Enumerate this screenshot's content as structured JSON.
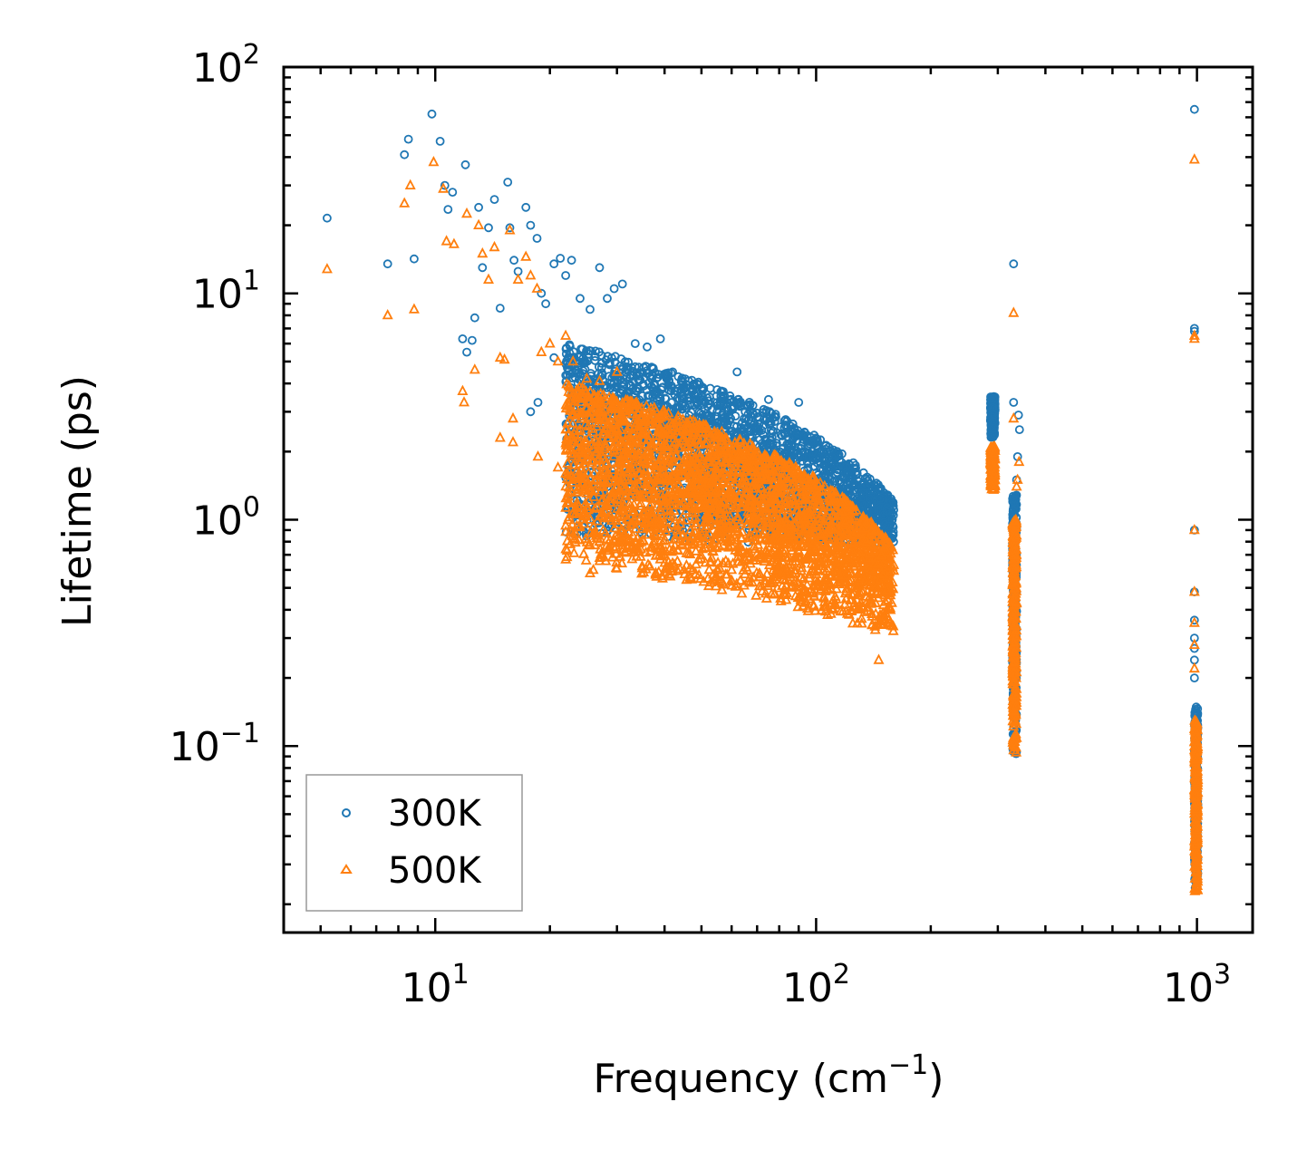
{
  "chart_data": {
    "type": "scatter",
    "xscale": "log",
    "yscale": "log",
    "xlim": [
      4,
      1400
    ],
    "ylim": [
      0.015,
      100
    ],
    "xlabel": "Frequency (cm",
    "xlabel_exp": "−1",
    "xlabel_close": ")",
    "ylabel": "Lifetime (ps)",
    "x_ticks": [
      {
        "value": 10,
        "base": "10",
        "exp": "1"
      },
      {
        "value": 100,
        "base": "10",
        "exp": "2"
      },
      {
        "value": 1000,
        "base": "10",
        "exp": "3"
      }
    ],
    "y_ticks": [
      {
        "value": 0.1,
        "base": "10",
        "exp": "−1"
      },
      {
        "value": 1,
        "base": "10",
        "exp": "0"
      },
      {
        "value": 10,
        "base": "10",
        "exp": "1"
      },
      {
        "value": 100,
        "base": "10",
        "exp": "2"
      }
    ],
    "legend_position": "lower-left",
    "series": [
      {
        "name": "300K",
        "marker": "circle",
        "color": "#1f77b4",
        "clusters": [
          {
            "x": [
              22,
              160
            ],
            "y_top": [
              6.0,
              1.2
            ],
            "y_bot": [
              0.85,
              0.75
            ],
            "n": 2600
          },
          {
            "x": [
              287,
              295
            ],
            "y_top": [
              3.5,
              3.5
            ],
            "y_bot": [
              2.3,
              2.3
            ],
            "n": 160
          },
          {
            "x": [
              328,
              336
            ],
            "y_top": [
              1.3,
              1.3
            ],
            "y_bot": [
              0.09,
              0.09
            ],
            "n": 300
          },
          {
            "x": [
              985,
              1005
            ],
            "y_top": [
              0.15,
              0.15
            ],
            "y_bot": [
              0.023,
              0.023
            ],
            "n": 260
          }
        ],
        "points": [
          [
            5.2,
            21.5
          ],
          [
            7.5,
            13.5
          ],
          [
            8.3,
            41
          ],
          [
            8.5,
            48
          ],
          [
            8.8,
            14.2
          ],
          [
            9.8,
            62
          ],
          [
            10.3,
            47
          ],
          [
            10.6,
            30
          ],
          [
            11.1,
            28
          ],
          [
            11.8,
            6.3
          ],
          [
            12.0,
            37
          ],
          [
            12.7,
            7.8
          ],
          [
            13.0,
            24
          ],
          [
            13.3,
            13
          ],
          [
            13.8,
            19.5
          ],
          [
            14.3,
            26
          ],
          [
            15.5,
            31
          ],
          [
            15.7,
            19.5
          ],
          [
            16.1,
            14
          ],
          [
            16.5,
            12.5
          ],
          [
            17.3,
            24
          ],
          [
            17.8,
            20
          ],
          [
            18.5,
            17.5
          ],
          [
            19.0,
            10
          ],
          [
            19.5,
            9
          ],
          [
            20.5,
            13.5
          ],
          [
            21.3,
            14.3
          ],
          [
            22.0,
            12
          ],
          [
            22.8,
            14
          ],
          [
            24.0,
            9.5
          ],
          [
            25.5,
            8.5
          ],
          [
            27.0,
            13
          ],
          [
            28.3,
            9.5
          ],
          [
            29.5,
            10.5
          ],
          [
            31.0,
            11
          ],
          [
            33.5,
            6
          ],
          [
            36.0,
            5.8
          ],
          [
            39.0,
            6.3
          ],
          [
            42.0,
            4.5
          ],
          [
            48.0,
            3.9
          ],
          [
            55.0,
            3.3
          ],
          [
            62.0,
            4.5
          ],
          [
            75.0,
            3.4
          ],
          [
            90.0,
            3.3
          ],
          [
            12.1,
            5.5
          ],
          [
            12.5,
            6.2
          ],
          [
            14.8,
            8.6
          ],
          [
            17.8,
            3.0
          ],
          [
            18.6,
            3.3
          ],
          [
            20.5,
            5.2
          ],
          [
            10.8,
            23.5
          ],
          [
            330,
            13.5
          ],
          [
            330,
            3.3
          ],
          [
            340,
            2.9
          ],
          [
            342,
            2.5
          ],
          [
            338,
            1.9
          ],
          [
            336,
            1.5
          ],
          [
            985,
            65
          ],
          [
            985,
            7
          ],
          [
            985,
            6.8
          ],
          [
            985,
            0.9
          ],
          [
            985,
            0.48
          ],
          [
            985,
            0.36
          ],
          [
            985,
            0.3
          ],
          [
            985,
            0.27
          ],
          [
            985,
            0.24
          ],
          [
            985,
            0.2
          ]
        ]
      },
      {
        "name": "500K",
        "marker": "triangle",
        "color": "#ff7f0e",
        "clusters": [
          {
            "x": [
              22,
              160
            ],
            "y_top": [
              4.0,
              0.75
            ],
            "y_bot": [
              0.65,
              0.3
            ],
            "n": 2800
          },
          {
            "x": [
              287,
              295
            ],
            "y_top": [
              2.1,
              2.1
            ],
            "y_bot": [
              1.35,
              1.35
            ],
            "n": 160
          },
          {
            "x": [
              328,
              336
            ],
            "y_top": [
              1.0,
              1.0
            ],
            "y_bot": [
              0.09,
              0.09
            ],
            "n": 320
          },
          {
            "x": [
              985,
              1005
            ],
            "y_top": [
              0.13,
              0.13
            ],
            "y_bot": [
              0.022,
              0.022
            ],
            "n": 280
          }
        ],
        "points": [
          [
            5.2,
            12.8
          ],
          [
            7.5,
            8
          ],
          [
            8.3,
            25
          ],
          [
            8.6,
            30
          ],
          [
            8.8,
            8.5
          ],
          [
            9.9,
            38
          ],
          [
            10.5,
            29
          ],
          [
            10.7,
            17
          ],
          [
            11.2,
            16.5
          ],
          [
            11.8,
            3.7
          ],
          [
            11.9,
            3.3
          ],
          [
            12.1,
            22.5
          ],
          [
            12.7,
            4.6
          ],
          [
            13.0,
            20
          ],
          [
            13.3,
            15
          ],
          [
            13.8,
            11.5
          ],
          [
            14.3,
            16
          ],
          [
            14.8,
            5.2
          ],
          [
            15.2,
            5.1
          ],
          [
            15.7,
            19
          ],
          [
            16.0,
            2.8
          ],
          [
            16.5,
            11.5
          ],
          [
            17.3,
            14.5
          ],
          [
            17.8,
            12
          ],
          [
            18.5,
            10.5
          ],
          [
            19.0,
            5.5
          ],
          [
            20.0,
            6.0
          ],
          [
            21.0,
            5
          ],
          [
            22.0,
            6.5
          ],
          [
            23.0,
            5
          ],
          [
            25.0,
            4.2
          ],
          [
            27.0,
            4.1
          ],
          [
            30.0,
            4.5
          ],
          [
            14.8,
            2.3
          ],
          [
            16.0,
            2.2
          ],
          [
            18.6,
            1.9
          ],
          [
            21.0,
            1.7
          ],
          [
            22.0,
            1.6
          ],
          [
            25.5,
            0.58
          ],
          [
            26.0,
            0.6
          ],
          [
            45.0,
            0.6
          ],
          [
            52.0,
            0.55
          ],
          [
            60.0,
            0.6
          ],
          [
            146,
            0.24
          ],
          [
            330,
            8.2
          ],
          [
            330,
            2.8
          ],
          [
            341,
            1.8
          ],
          [
            338,
            1.5
          ],
          [
            336,
            1.4
          ],
          [
            985,
            39
          ],
          [
            985,
            6.5
          ],
          [
            985,
            6.3
          ],
          [
            985,
            0.9
          ],
          [
            985,
            0.48
          ],
          [
            985,
            0.35
          ],
          [
            985,
            0.28
          ],
          [
            985,
            0.22
          ]
        ]
      }
    ]
  }
}
